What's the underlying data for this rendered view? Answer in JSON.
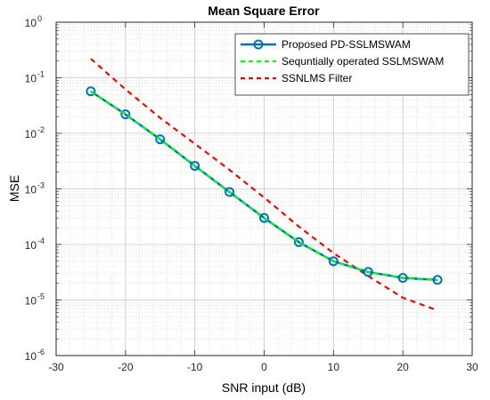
{
  "chart_data": {
    "type": "line",
    "title": "Mean Square Error",
    "xlabel": "SNR input (dB)",
    "ylabel": "MSE",
    "xlim": [
      -30,
      30
    ],
    "ylim": [
      1e-06,
      1
    ],
    "yscale": "log",
    "grid": true,
    "minor_grid": true,
    "legend_position": "top-right",
    "x_ticks": [
      -30,
      -20,
      -10,
      0,
      10,
      20,
      30
    ],
    "x_tick_labels": [
      "-30",
      "-20",
      "-10",
      "0",
      "10",
      "20",
      "30"
    ],
    "y_ticks": [
      1e-06,
      1e-05,
      0.0001,
      0.001,
      0.01,
      0.1,
      1
    ],
    "y_tick_labels": [
      {
        "base": "10",
        "exp": "-6"
      },
      {
        "base": "10",
        "exp": "-5"
      },
      {
        "base": "10",
        "exp": "-4"
      },
      {
        "base": "10",
        "exp": "-3"
      },
      {
        "base": "10",
        "exp": "-2"
      },
      {
        "base": "10",
        "exp": "-1"
      },
      {
        "base": "10",
        "exp": "0"
      }
    ],
    "series": [
      {
        "name": "Proposed PD-SSLMSWAM",
        "color": "#0072BD",
        "style": "solid",
        "marker": "circle",
        "x": [
          -25,
          -20,
          -15,
          -10,
          -5,
          0,
          5,
          10,
          15,
          20,
          25
        ],
        "y": [
          0.057,
          0.022,
          0.0078,
          0.0026,
          0.00088,
          0.0003,
          0.00011,
          5e-05,
          3.2e-05,
          2.5e-05,
          2.3e-05
        ]
      },
      {
        "name": "Sequntially operated SSLMSWAM",
        "color": "#00FF00",
        "style": "dashed",
        "marker": "none",
        "x": [
          -25,
          -20,
          -15,
          -10,
          -5,
          0,
          5,
          10,
          15,
          20,
          25
        ],
        "y": [
          0.057,
          0.022,
          0.0078,
          0.0026,
          0.00088,
          0.0003,
          0.00011,
          5e-05,
          3.2e-05,
          2.5e-05,
          2.3e-05
        ]
      },
      {
        "name": "SSNLMS Filter",
        "color": "#FF0000",
        "style": "dashed",
        "marker": "none",
        "x": [
          -25,
          -20,
          -15,
          -10,
          -5,
          0,
          5,
          10,
          15,
          20,
          25
        ],
        "y": [
          0.22,
          0.062,
          0.019,
          0.0065,
          0.0022,
          0.0007,
          0.00021,
          7e-05,
          2.7e-05,
          1.1e-05,
          6.5e-06
        ]
      }
    ]
  }
}
